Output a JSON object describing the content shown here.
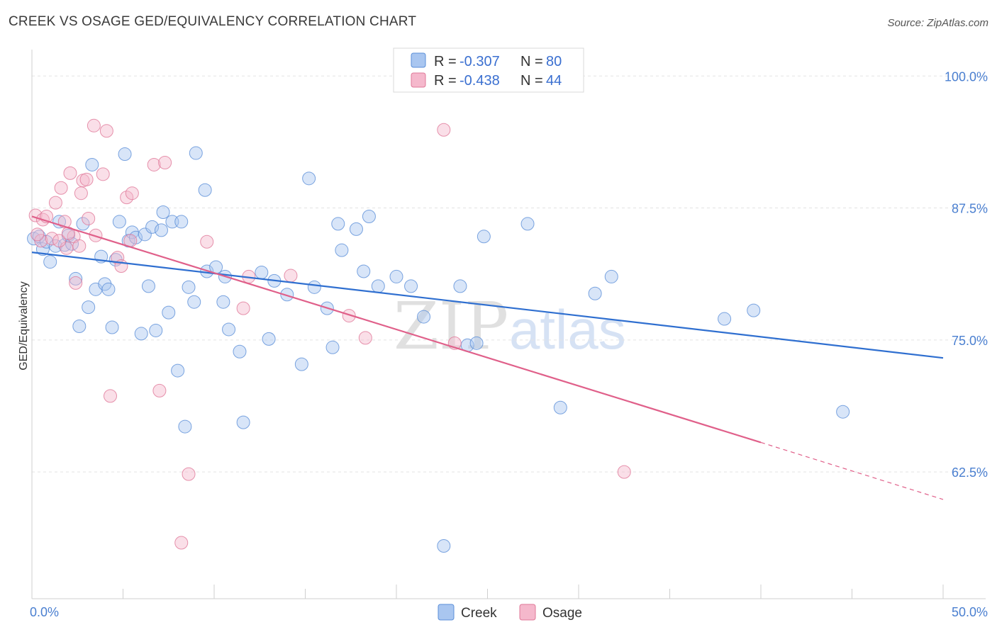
{
  "header": {
    "title": "CREEK VS OSAGE GED/EQUIVALENCY CORRELATION CHART",
    "source": "Source: ZipAtlas.com"
  },
  "watermark": {
    "part1": "ZIP",
    "part2": "atlas"
  },
  "legend": {
    "rows": [
      {
        "r_label": "R =",
        "r_value": "-0.307",
        "n_label": "N =",
        "n_value": "80",
        "color": "#a9c6f0"
      },
      {
        "r_label": "R =",
        "r_value": "-0.438",
        "n_label": "N =",
        "n_value": "44",
        "color": "#f5b8cc"
      }
    ]
  },
  "chart_data": {
    "type": "scatter",
    "title": "CREEK VS OSAGE GED/EQUIVALENCY CORRELATION CHART",
    "xlabel": "",
    "ylabel": "GED/Equivalency",
    "xlim": [
      0,
      50
    ],
    "ylim": [
      50.5,
      102.5
    ],
    "x_tick_labels": [
      {
        "value": 0,
        "label": "0.0%"
      },
      {
        "value": 50,
        "label": "50.0%"
      }
    ],
    "y_tick_labels": [
      {
        "value": 100,
        "label": "100.0%"
      },
      {
        "value": 87.5,
        "label": "87.5%"
      },
      {
        "value": 75,
        "label": "75.0%"
      },
      {
        "value": 62.5,
        "label": "62.5%"
      }
    ],
    "grid": true,
    "legend_position": "top-center",
    "series": [
      {
        "name": "Creek",
        "color": "#a9c6f0",
        "stroke": "#5b8fd8",
        "trend": {
          "x0": 0,
          "y0": 83.3,
          "x1": 50,
          "y1": 73.3,
          "color": "#2f6fd0"
        },
        "points": [
          [
            0.1,
            84.6
          ],
          [
            0.4,
            84.8
          ],
          [
            0.6,
            83.6
          ],
          [
            0.8,
            84.3
          ],
          [
            1.0,
            82.4
          ],
          [
            1.3,
            83.9
          ],
          [
            1.5,
            86.2
          ],
          [
            1.8,
            84.0
          ],
          [
            2.0,
            84.9
          ],
          [
            2.2,
            84.1
          ],
          [
            2.4,
            80.8
          ],
          [
            2.6,
            76.3
          ],
          [
            2.8,
            86.0
          ],
          [
            3.1,
            78.1
          ],
          [
            3.3,
            91.6
          ],
          [
            3.5,
            79.8
          ],
          [
            3.8,
            82.9
          ],
          [
            4.0,
            80.3
          ],
          [
            4.2,
            79.8
          ],
          [
            4.4,
            76.2
          ],
          [
            4.6,
            82.6
          ],
          [
            4.8,
            86.2
          ],
          [
            5.1,
            92.6
          ],
          [
            5.3,
            84.4
          ],
          [
            5.5,
            85.2
          ],
          [
            5.7,
            84.7
          ],
          [
            6.0,
            75.6
          ],
          [
            6.2,
            85.0
          ],
          [
            6.4,
            80.1
          ],
          [
            6.6,
            85.7
          ],
          [
            6.8,
            75.9
          ],
          [
            7.1,
            85.4
          ],
          [
            7.2,
            87.1
          ],
          [
            7.5,
            77.6
          ],
          [
            7.7,
            86.2
          ],
          [
            8.0,
            72.1
          ],
          [
            8.2,
            86.2
          ],
          [
            8.4,
            66.8
          ],
          [
            8.6,
            80.0
          ],
          [
            8.9,
            78.6
          ],
          [
            9.0,
            92.7
          ],
          [
            9.5,
            89.2
          ],
          [
            9.6,
            81.5
          ],
          [
            10.1,
            81.9
          ],
          [
            10.5,
            78.6
          ],
          [
            10.6,
            81.0
          ],
          [
            10.8,
            76.0
          ],
          [
            11.4,
            73.9
          ],
          [
            11.6,
            67.2
          ],
          [
            12.6,
            81.4
          ],
          [
            13.0,
            75.1
          ],
          [
            13.3,
            80.6
          ],
          [
            14.0,
            79.3
          ],
          [
            14.8,
            72.7
          ],
          [
            15.2,
            90.3
          ],
          [
            15.5,
            80.0
          ],
          [
            16.2,
            78.0
          ],
          [
            16.5,
            74.3
          ],
          [
            16.8,
            86.0
          ],
          [
            17.0,
            83.5
          ],
          [
            17.8,
            85.5
          ],
          [
            18.2,
            81.5
          ],
          [
            18.5,
            86.7
          ],
          [
            19.0,
            80.1
          ],
          [
            20.0,
            81.0
          ],
          [
            20.8,
            80.1
          ],
          [
            21.5,
            77.2
          ],
          [
            22.6,
            55.5
          ],
          [
            23.5,
            80.1
          ],
          [
            23.9,
            74.5
          ],
          [
            24.4,
            74.7
          ],
          [
            24.8,
            84.8
          ],
          [
            27.2,
            86.0
          ],
          [
            29.0,
            68.6
          ],
          [
            30.9,
            79.4
          ],
          [
            31.8,
            81.0
          ],
          [
            38.0,
            77.0
          ],
          [
            39.6,
            77.8
          ],
          [
            44.5,
            68.2
          ],
          [
            22.0,
            100.9
          ]
        ]
      },
      {
        "name": "Osage",
        "color": "#f5b8cc",
        "stroke": "#e07898",
        "trend": {
          "x0": 0,
          "y0": 86.7,
          "x1": 40,
          "y1": 65.3,
          "color": "#e0608a",
          "dashed_to_x": 50,
          "dashed_to_y": 59.9
        },
        "points": [
          [
            0.2,
            86.8
          ],
          [
            0.5,
            84.4
          ],
          [
            0.6,
            86.4
          ],
          [
            0.8,
            86.7
          ],
          [
            1.1,
            84.6
          ],
          [
            1.3,
            88.0
          ],
          [
            1.6,
            89.4
          ],
          [
            1.8,
            86.2
          ],
          [
            1.9,
            83.7
          ],
          [
            2.1,
            90.8
          ],
          [
            2.3,
            84.8
          ],
          [
            2.4,
            80.4
          ],
          [
            2.6,
            83.9
          ],
          [
            2.7,
            88.9
          ],
          [
            2.8,
            90.1
          ],
          [
            3.0,
            90.2
          ],
          [
            3.1,
            86.5
          ],
          [
            3.4,
            95.3
          ],
          [
            3.5,
            84.9
          ],
          [
            3.9,
            90.7
          ],
          [
            4.1,
            94.8
          ],
          [
            4.3,
            69.7
          ],
          [
            4.7,
            82.8
          ],
          [
            4.9,
            82.0
          ],
          [
            5.2,
            88.5
          ],
          [
            5.4,
            84.4
          ],
          [
            5.5,
            88.9
          ],
          [
            6.7,
            91.6
          ],
          [
            7.0,
            70.2
          ],
          [
            7.3,
            91.8
          ],
          [
            8.6,
            62.3
          ],
          [
            8.2,
            55.8
          ],
          [
            9.6,
            84.3
          ],
          [
            11.6,
            78.0
          ],
          [
            11.9,
            81.0
          ],
          [
            14.2,
            81.1
          ],
          [
            17.4,
            77.3
          ],
          [
            18.3,
            75.2
          ],
          [
            22.6,
            94.9
          ],
          [
            23.2,
            74.7
          ],
          [
            32.5,
            62.5
          ],
          [
            0.3,
            85.0
          ],
          [
            1.5,
            84.4
          ],
          [
            2.0,
            85.1
          ]
        ]
      }
    ]
  }
}
